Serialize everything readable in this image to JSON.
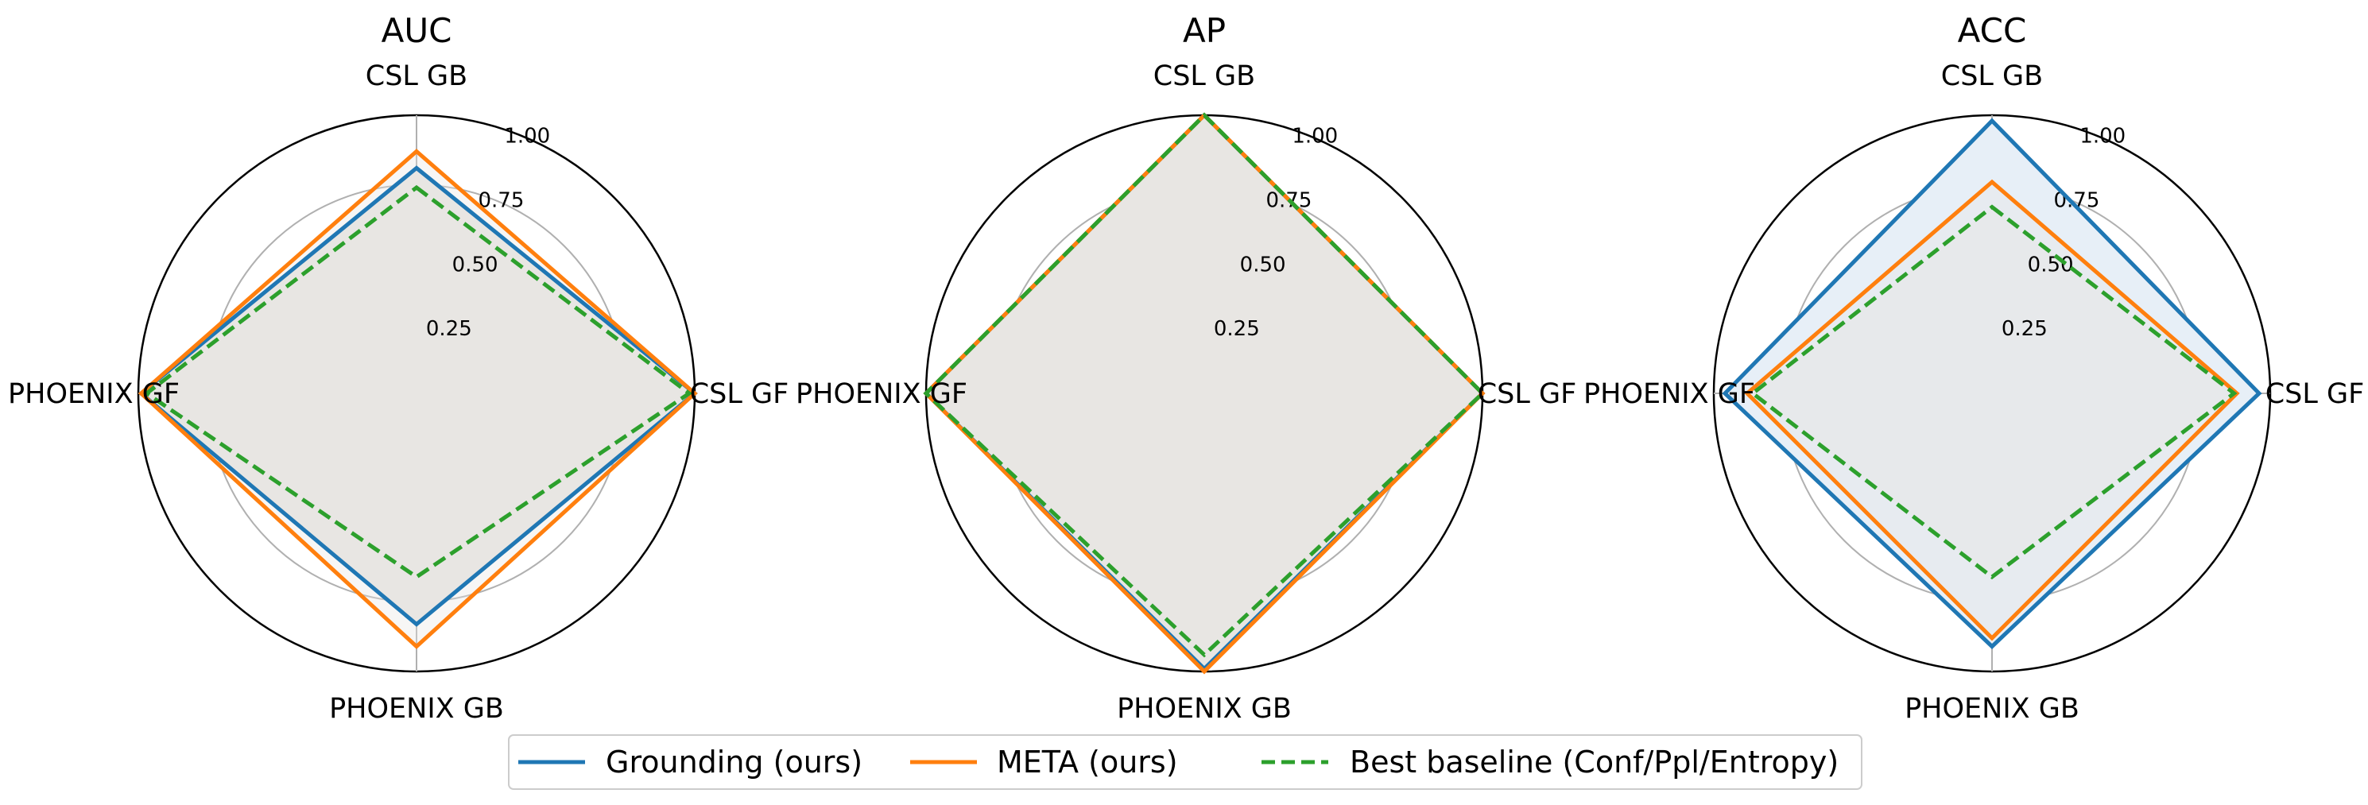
{
  "chart_data": [
    {
      "type": "radar",
      "title": "AUC",
      "categories": [
        "CSL GB",
        "CSL GF",
        "PHOENIX GB",
        "PHOENIX GF"
      ],
      "rlim": [
        0,
        1
      ],
      "r_ticks": [
        "0.25",
        "0.50",
        "0.75",
        "1.00"
      ],
      "grid": true,
      "series": [
        {
          "name": "Grounding (ours)",
          "values": [
            0.81,
            1.0,
            0.83,
            0.99
          ]
        },
        {
          "name": "META (ours)",
          "values": [
            0.87,
            1.0,
            0.91,
            0.99
          ]
        },
        {
          "name": "Best baseline (Conf/Ppl/Entropy)",
          "values": [
            0.74,
            0.98,
            0.66,
            0.97
          ]
        }
      ]
    },
    {
      "type": "radar",
      "title": "AP",
      "categories": [
        "CSL GB",
        "CSL GF",
        "PHOENIX GB",
        "PHOENIX GF"
      ],
      "rlim": [
        0,
        1
      ],
      "r_ticks": [
        "0.25",
        "0.50",
        "0.75",
        "1.00"
      ],
      "grid": true,
      "series": [
        {
          "name": "Grounding (ours)",
          "values": [
            1.0,
            1.0,
            0.99,
            1.0
          ]
        },
        {
          "name": "META (ours)",
          "values": [
            1.0,
            1.0,
            1.0,
            1.0
          ]
        },
        {
          "name": "Best baseline (Conf/Ppl/Entropy)",
          "values": [
            1.0,
            1.0,
            0.94,
            1.0
          ]
        }
      ]
    },
    {
      "type": "radar",
      "title": "ACC",
      "categories": [
        "CSL GB",
        "CSL GF",
        "PHOENIX GB",
        "PHOENIX GF"
      ],
      "rlim": [
        0,
        1
      ],
      "r_ticks": [
        "0.25",
        "0.50",
        "0.75",
        "1.00"
      ],
      "grid": true,
      "series": [
        {
          "name": "Grounding (ours)",
          "values": [
            0.98,
            0.96,
            0.91,
            0.96
          ]
        },
        {
          "name": "META (ours)",
          "values": [
            0.76,
            0.88,
            0.88,
            0.88
          ]
        },
        {
          "name": "Best baseline (Conf/Ppl/Entropy)",
          "values": [
            0.67,
            0.87,
            0.66,
            0.86
          ]
        }
      ]
    }
  ],
  "legend": {
    "placement": "bottom-center",
    "items": [
      {
        "label": "Grounding (ours)",
        "color": "#1f77b4",
        "style": "solid"
      },
      {
        "label": "META (ours)",
        "color": "#ff7f0e",
        "style": "solid"
      },
      {
        "label": "Best baseline (Conf/Ppl/Entropy)",
        "color": "#2ca02c",
        "style": "dashed"
      }
    ]
  },
  "colors": {
    "grounding": "#1f77b4",
    "meta": "#ff7f0e",
    "baseline": "#2ca02c",
    "grid": "#b0b0b0",
    "fill": "#e8e6e3",
    "fill_highlight": "#e7eff7"
  }
}
